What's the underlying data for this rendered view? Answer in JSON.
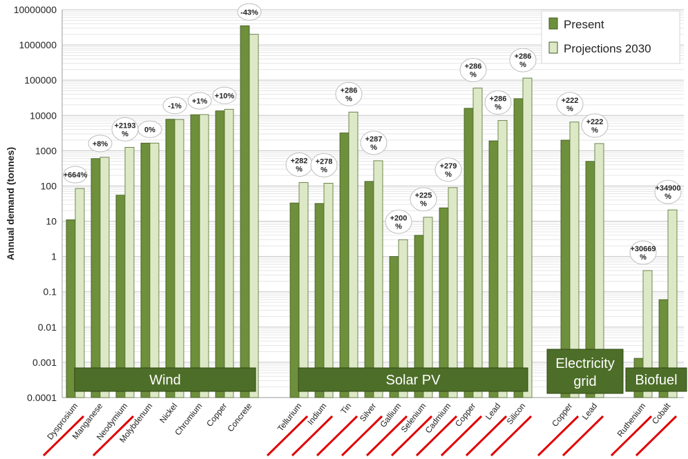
{
  "chart_data": {
    "type": "bar",
    "scale": "log",
    "ylabel": "Annual demand (tonnes)",
    "ylim": [
      0.0001,
      10000000
    ],
    "y_tick_labels": [
      "0.0001",
      "0.001",
      "0.01",
      "0.1",
      "1",
      "10",
      "100",
      "1000",
      "10000",
      "100000",
      "1000000",
      "10000000"
    ],
    "grid": true,
    "legend_position": "top-right",
    "series": [
      {
        "name": "Present",
        "color": "#6e8f3b"
      },
      {
        "name": "Projections 2030",
        "color": "#dde9c6"
      }
    ],
    "groups": [
      {
        "label": "Wind",
        "items": [
          {
            "category": "Dysprosium",
            "present": 11,
            "projection": 85,
            "change": "+664%",
            "underline": true
          },
          {
            "category": "Manganese",
            "present": 600,
            "projection": 650,
            "change": "+8%",
            "underline": false
          },
          {
            "category": "Neodymium",
            "present": 55,
            "projection": 1250,
            "change": "+2193 %",
            "underline": true
          },
          {
            "category": "Molybdenum",
            "present": 1650,
            "projection": 1650,
            "change": "0%",
            "underline": false
          },
          {
            "category": "Nickel",
            "present": 7800,
            "projection": 7700,
            "change": "-1%",
            "underline": false
          },
          {
            "category": "Chromium",
            "present": 10500,
            "projection": 10600,
            "change": "+1%",
            "underline": false
          },
          {
            "category": "Copper",
            "present": 13500,
            "projection": 15000,
            "change": "+10%",
            "underline": false
          },
          {
            "category": "Concrete",
            "present": 3500000,
            "projection": 2000000,
            "change": "-43%",
            "underline": false
          }
        ]
      },
      {
        "label": "Solar PV",
        "items": [
          {
            "category": "Tellurium",
            "present": 33,
            "projection": 125,
            "change": "+282 %",
            "underline": true
          },
          {
            "category": "Indium",
            "present": 32,
            "projection": 120,
            "change": "+278 %",
            "underline": true
          },
          {
            "category": "Tin",
            "present": 3200,
            "projection": 12500,
            "change": "+286 %",
            "underline": true
          },
          {
            "category": "Silver",
            "present": 135,
            "projection": 520,
            "change": "+287 %",
            "underline": true
          },
          {
            "category": "Gallium",
            "present": 1,
            "projection": 3,
            "change": "+200 %",
            "underline": true
          },
          {
            "category": "Selenium",
            "present": 4,
            "projection": 13,
            "change": "+225 %",
            "underline": true
          },
          {
            "category": "Cadmium",
            "present": 24,
            "projection": 90,
            "change": "+279 %",
            "underline": true
          },
          {
            "category": "Copper",
            "present": 16000,
            "projection": 60000,
            "change": "+286 %",
            "underline": true
          },
          {
            "category": "Lead",
            "present": 1900,
            "projection": 7200,
            "change": "+286 %",
            "underline": true
          },
          {
            "category": "Silicon",
            "present": 30000,
            "projection": 115000,
            "change": "+286 %",
            "underline": true
          }
        ]
      },
      {
        "label": "Electricity grid",
        "items": [
          {
            "category": "Copper",
            "present": 2000,
            "projection": 6500,
            "change": "+222 %",
            "underline": true
          },
          {
            "category": "Lead",
            "present": 500,
            "projection": 1600,
            "change": "+222 %",
            "underline": true
          }
        ]
      },
      {
        "label": "Biofuel",
        "items": [
          {
            "category": "Ruthenium",
            "present": 0.0013,
            "projection": 0.4,
            "change": "+30669 %",
            "underline": true
          },
          {
            "category": "Cobalt",
            "present": 0.06,
            "projection": 21,
            "change": "+34900 %",
            "underline": true
          }
        ]
      }
    ]
  }
}
